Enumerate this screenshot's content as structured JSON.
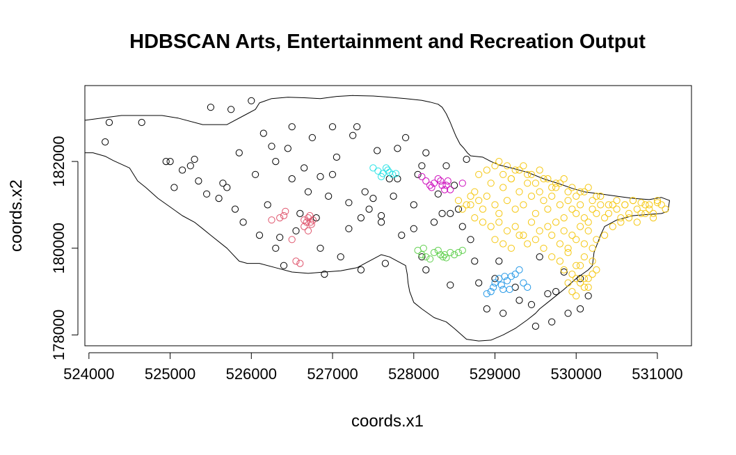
{
  "chart_data": {
    "type": "scatter",
    "title": "HDBSCAN Arts, Entertainment and Recreation Output",
    "xlabel": "coords.x1",
    "ylabel": "coords.x2",
    "xlim": [
      523950,
      531420
    ],
    "ylim": [
      177750,
      183750
    ],
    "xticks": [
      524000,
      525000,
      526000,
      527000,
      528000,
      529000,
      530000,
      531000
    ],
    "yticks": [
      178000,
      180000,
      182000
    ],
    "grid": false,
    "legend": "none",
    "boundary": [
      [
        523950,
        182950
      ],
      [
        524400,
        183060
      ],
      [
        524900,
        183060
      ],
      [
        525100,
        183000
      ],
      [
        525400,
        182850
      ],
      [
        525700,
        182850
      ],
      [
        525950,
        183100
      ],
      [
        526050,
        183200
      ],
      [
        526100,
        183350
      ],
      [
        526250,
        183450
      ],
      [
        526450,
        183480
      ],
      [
        526650,
        183470
      ],
      [
        526850,
        183450
      ],
      [
        527050,
        183500
      ],
      [
        527250,
        183520
      ],
      [
        527500,
        183510
      ],
      [
        527650,
        183490
      ],
      [
        527900,
        183450
      ],
      [
        528100,
        183410
      ],
      [
        528200,
        183370
      ],
      [
        528300,
        183320
      ],
      [
        528350,
        183250
      ],
      [
        528400,
        183100
      ],
      [
        528450,
        182900
      ],
      [
        528480,
        182760
      ],
      [
        528520,
        182580
      ],
      [
        528570,
        182400
      ],
      [
        528620,
        182300
      ],
      [
        528660,
        182200
      ],
      [
        528700,
        182130
      ],
      [
        528750,
        182120
      ],
      [
        528850,
        182100
      ],
      [
        528950,
        182000
      ],
      [
        529050,
        181920
      ],
      [
        529200,
        181850
      ],
      [
        529400,
        181750
      ],
      [
        529600,
        181600
      ],
      [
        529800,
        181480
      ],
      [
        529950,
        181380
      ],
      [
        530100,
        181300
      ],
      [
        530300,
        181250
      ],
      [
        530500,
        181200
      ],
      [
        530700,
        181150
      ],
      [
        530900,
        181120
      ],
      [
        531050,
        181170
      ],
      [
        531150,
        181100
      ],
      [
        531130,
        180850
      ],
      [
        531050,
        180800
      ],
      [
        530900,
        180780
      ],
      [
        530700,
        180750
      ],
      [
        530500,
        180650
      ],
      [
        530350,
        180500
      ],
      [
        530300,
        180300
      ],
      [
        530220,
        179900
      ],
      [
        530200,
        179600
      ],
      [
        530150,
        179500
      ],
      [
        530000,
        179300
      ],
      [
        529850,
        179050
      ],
      [
        529750,
        178900
      ],
      [
        529650,
        178750
      ],
      [
        529550,
        178600
      ],
      [
        529500,
        178500
      ],
      [
        529400,
        178350
      ],
      [
        529250,
        178150
      ],
      [
        529100,
        178000
      ],
      [
        528950,
        177880
      ],
      [
        528800,
        177860
      ],
      [
        528650,
        177900
      ],
      [
        528500,
        178150
      ],
      [
        528400,
        178300
      ],
      [
        528250,
        178400
      ],
      [
        528100,
        178600
      ],
      [
        528000,
        178750
      ],
      [
        527950,
        179000
      ],
      [
        527930,
        179200
      ],
      [
        527920,
        179400
      ],
      [
        527900,
        179600
      ],
      [
        527800,
        179700
      ],
      [
        527700,
        179800
      ],
      [
        527600,
        179850
      ],
      [
        527500,
        179750
      ],
      [
        527400,
        179650
      ],
      [
        527300,
        179550
      ],
      [
        527100,
        179480
      ],
      [
        526900,
        179450
      ],
      [
        526700,
        179420
      ],
      [
        526500,
        179450
      ],
      [
        526300,
        179550
      ],
      [
        526100,
        179650
      ],
      [
        525950,
        179650
      ],
      [
        525850,
        179700
      ],
      [
        525700,
        180000
      ],
      [
        525500,
        180300
      ],
      [
        525400,
        180450
      ],
      [
        525300,
        180600
      ],
      [
        525150,
        180750
      ],
      [
        525000,
        180950
      ],
      [
        524850,
        181150
      ],
      [
        524700,
        181400
      ],
      [
        524600,
        181550
      ],
      [
        524500,
        181850
      ],
      [
        524300,
        182020
      ],
      [
        524200,
        182120
      ],
      [
        524050,
        182200
      ],
      [
        523950,
        182200
      ]
    ],
    "series": [
      {
        "color": "#000000",
        "x": [
          524200,
          524650,
          524950,
          525150,
          525350,
          525600,
          525800,
          526050,
          526300,
          526500,
          526700,
          526950,
          527200,
          527450,
          527700,
          527900,
          528150,
          528400,
          528650,
          528900,
          529100,
          529300,
          529500,
          529700,
          529900,
          530050,
          530150,
          525050,
          525250,
          525450,
          525650,
          525850,
          526150,
          526450,
          526650,
          526850,
          527050,
          527300,
          527550,
          527800,
          528050,
          528250,
          528450,
          528700,
          526100,
          526300,
          526550,
          526850,
          527100,
          527350,
          527600,
          527850,
          528100,
          528350,
          528600,
          525500,
          525750,
          526000,
          526250,
          526500,
          526750,
          527000,
          527250,
          527500,
          527750,
          528000,
          528300,
          528550,
          528750,
          529000,
          529250,
          529450,
          529650,
          529850,
          530050,
          524250,
          525000,
          525300,
          525700,
          526400,
          526900,
          527350,
          527650,
          528150,
          528450,
          528800,
          529050,
          529550,
          529750,
          526200,
          526600,
          527000,
          527400,
          527800,
          528100,
          528500,
          525900,
          526350,
          526800,
          527200,
          527600,
          528000
        ],
        "y": [
          182450,
          182900,
          182000,
          181800,
          181550,
          181150,
          180900,
          181700,
          182000,
          181600,
          181300,
          181200,
          181050,
          180900,
          181600,
          182550,
          182200,
          181900,
          182050,
          178600,
          178500,
          178800,
          178200,
          178300,
          178500,
          178600,
          178900,
          181400,
          181900,
          181250,
          181500,
          182200,
          182650,
          182300,
          181850,
          181650,
          182100,
          182800,
          182250,
          182300,
          181700,
          180600,
          180800,
          180200,
          180300,
          180000,
          180400,
          180000,
          179800,
          180700,
          180600,
          180300,
          179800,
          180800,
          180500,
          183250,
          183200,
          183400,
          182350,
          182800,
          182550,
          182800,
          182600,
          181150,
          181200,
          181000,
          181250,
          180900,
          179700,
          179300,
          179100,
          178700,
          178950,
          179450,
          179300,
          182900,
          182000,
          182050,
          181400,
          179600,
          179400,
          179500,
          179650,
          179500,
          179150,
          179200,
          179700,
          179800,
          179000,
          181000,
          180800,
          181700,
          181300,
          181600,
          181900,
          181450,
          180600,
          180250,
          180700,
          180450,
          180750,
          180450
        ]
      },
      {
        "color": "#DF536B",
        "x": [
          526250,
          526350,
          526400,
          526420,
          526500,
          526550,
          526650,
          526680,
          526700,
          526720,
          526730,
          526740,
          526760,
          526700,
          526650,
          526600
        ],
        "y": [
          180650,
          180700,
          180750,
          180850,
          180200,
          179700,
          180650,
          180600,
          180700,
          180750,
          180600,
          180550,
          180650,
          180400,
          180500,
          179650
        ]
      },
      {
        "color": "#61D04F",
        "x": [
          528050,
          528100,
          528150,
          528200,
          528250,
          528300,
          528330,
          528360,
          528400,
          528450,
          528500,
          528550,
          528600,
          528120,
          528380
        ],
        "y": [
          179950,
          179850,
          179800,
          179750,
          179900,
          179950,
          179850,
          179800,
          179780,
          179900,
          179850,
          179900,
          179950,
          180000,
          179850
        ]
      },
      {
        "color": "#2297E6",
        "x": [
          528950,
          528980,
          529000,
          529050,
          529080,
          529100,
          529150,
          529200,
          529250,
          529300,
          529350,
          529400,
          528900,
          529120,
          529180
        ],
        "y": [
          179000,
          179100,
          179200,
          179300,
          179150,
          179050,
          179250,
          179350,
          179400,
          179500,
          179200,
          179100,
          178950,
          179350,
          179050
        ]
      },
      {
        "color": "#28E2E5",
        "x": [
          527500,
          527560,
          527620,
          527660,
          527700,
          527740,
          527780,
          527600,
          527680
        ],
        "y": [
          181850,
          181780,
          181720,
          181850,
          181750,
          181700,
          181720,
          181650,
          181800
        ]
      },
      {
        "color": "#CD0BBC",
        "x": [
          528100,
          528150,
          528200,
          528250,
          528300,
          528350,
          528380,
          528400,
          528420,
          528450,
          528600,
          528220,
          528330
        ],
        "y": [
          181650,
          181550,
          181450,
          181500,
          181600,
          181450,
          181350,
          181450,
          181550,
          181350,
          181500,
          181400,
          181550
        ]
      },
      {
        "color": "#F5C710",
        "x": [
          528700,
          528750,
          528800,
          528850,
          528900,
          528950,
          529000,
          529050,
          529100,
          529150,
          529200,
          529250,
          529300,
          529350,
          529400,
          529450,
          529500,
          529550,
          529600,
          529650,
          529700,
          529750,
          529800,
          529850,
          529900,
          529950,
          530000,
          530050,
          530100,
          530150,
          530200,
          530250,
          530300,
          530350,
          530400,
          530450,
          530500,
          530550,
          530600,
          530650,
          530700,
          530750,
          530800,
          530850,
          530900,
          530950,
          531000,
          531050,
          531100,
          528800,
          528900,
          529000,
          529100,
          529200,
          529300,
          529400,
          529500,
          529600,
          529700,
          529800,
          529900,
          530000,
          530100,
          530200,
          530300,
          530400,
          530500,
          530600,
          530700,
          530800,
          530900,
          531000,
          528750,
          528850,
          528950,
          529050,
          529150,
          529250,
          529350,
          529450,
          529550,
          529650,
          529750,
          529850,
          529950,
          530050,
          530150,
          530250,
          530350,
          530450,
          530550,
          530650,
          530750,
          530850,
          530950,
          529000,
          529100,
          529200,
          529300,
          529400,
          529500,
          529600,
          529700,
          529800,
          529900,
          530000,
          530100,
          530200,
          529050,
          529150,
          529250,
          529350,
          529450,
          529550,
          529650,
          529750,
          529850,
          529950,
          530050,
          530150,
          530250,
          529700,
          529800,
          529900,
          530000,
          530100,
          530200,
          529850,
          529950,
          530050,
          530150,
          530250,
          529900,
          530000,
          530100,
          530200,
          529950,
          530050,
          530150,
          530000,
          530100,
          528650,
          528700,
          528600,
          528550
        ],
        "y": [
          181000,
          181300,
          181100,
          180900,
          181200,
          181500,
          181000,
          180800,
          181400,
          181100,
          181600,
          180900,
          181300,
          181000,
          181500,
          181200,
          180800,
          181300,
          181100,
          180900,
          181200,
          181400,
          181000,
          180700,
          181100,
          180900,
          180800,
          181000,
          180700,
          180600,
          180900,
          180800,
          181000,
          180700,
          180800,
          181000,
          180900,
          180700,
          181000,
          180800,
          181100,
          180900,
          180800,
          181000,
          180900,
          180800,
          181100,
          181000,
          180900,
          181700,
          181800,
          181900,
          181700,
          181600,
          181800,
          181700,
          181500,
          181600,
          181400,
          181500,
          181300,
          181200,
          181300,
          181100,
          181200,
          181000,
          181100,
          181000,
          181100,
          181050,
          181000,
          181050,
          180700,
          180600,
          180500,
          180600,
          180400,
          180500,
          180300,
          180600,
          180400,
          180500,
          180600,
          180400,
          180300,
          180500,
          180400,
          180200,
          180300,
          180500,
          180600,
          180700,
          180600,
          180800,
          180700,
          180200,
          180100,
          180000,
          180300,
          180100,
          180200,
          180000,
          180300,
          180100,
          180000,
          180200,
          180100,
          180000,
          182000,
          181900,
          181800,
          181900,
          181700,
          181800,
          181600,
          181500,
          181600,
          181400,
          181300,
          181400,
          181200,
          179800,
          179700,
          179900,
          179600,
          179800,
          179700,
          179500,
          179400,
          179600,
          179300,
          179500,
          179200,
          179300,
          179100,
          179400,
          179000,
          179200,
          179100,
          178900,
          179300,
          181000,
          181200,
          180900,
          181100
        ]
      }
    ]
  }
}
